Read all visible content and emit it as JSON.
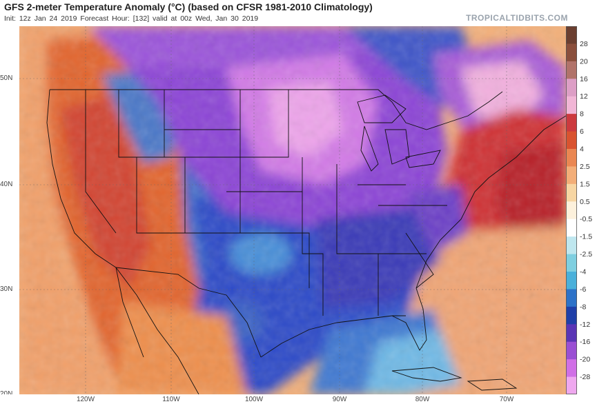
{
  "header": {
    "title": "GFS 2-meter Temperature Anomaly (°C) (based on CFSR 1981-2010 Climatology)",
    "subtitle": "Init: 12z Jan 24 2019   Forecast Hour: [132]   valid at 00z Wed, Jan 30 2019",
    "brand": "TROPICALTIDBITS.COM"
  },
  "axes": {
    "latitude_labels": [
      "50N",
      "40N",
      "30N",
      "20N"
    ],
    "longitude_labels": [
      "120W",
      "110W",
      "100W",
      "90W",
      "80W",
      "70W"
    ]
  },
  "colorbar": {
    "labels": [
      "28",
      "20",
      "16",
      "12",
      "8",
      "6",
      "4",
      "2.5",
      "1.5",
      "0.5",
      "-0.5",
      "-1.5",
      "-2.5",
      "-4",
      "-6",
      "-8",
      "-12",
      "-16",
      "-20",
      "-28"
    ],
    "colors": [
      "#6b3f30",
      "#8a4f3c",
      "#b1736a",
      "#dd9fc6",
      "#f1b6d6",
      "#cc3a3e",
      "#d9532f",
      "#ea8752",
      "#f3ae78",
      "#f7d6a3",
      "#fdf1dc",
      "#ffffff",
      "#bfe7ef",
      "#7fcfe0",
      "#4ab0da",
      "#2d72c8",
      "#1f3fa8",
      "#5a35b5",
      "#9a4fd3",
      "#d06fe6",
      "#efa8ef"
    ]
  },
  "palette": {
    "warm_west": "#e3642c",
    "warm_ocean": "#f1a16b",
    "deep_red": "#c9282b",
    "cold_blue": "#2f4cc8",
    "cold_purple": "#8c45d6",
    "extreme_cold": "#f0a4ec",
    "ocean_cool": "#6fb9e6"
  }
}
